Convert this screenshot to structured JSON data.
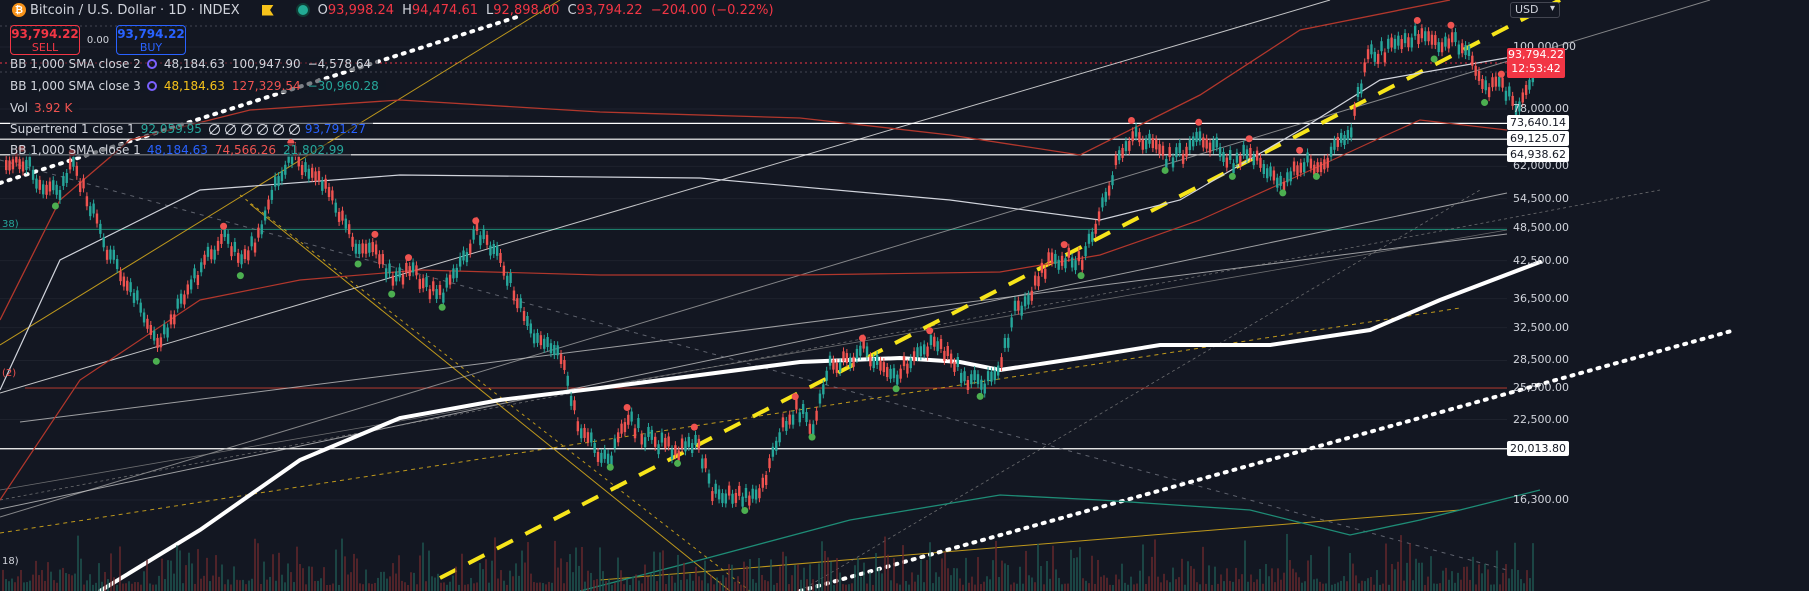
{
  "header": {
    "logo_glyph": "₿",
    "title": "Bitcoin / U.S. Dollar · 1D · INDEX",
    "ohlc": [
      {
        "k": "O",
        "v": "93,998.24"
      },
      {
        "k": "H",
        "v": "94,474.61"
      },
      {
        "k": "L",
        "v": "92,898.00"
      },
      {
        "k": "C",
        "v": "93,794.22"
      }
    ],
    "change": "−204.00 (−0.22%)"
  },
  "trade": {
    "sell_price": "93,794.22",
    "sell_label": "SELL",
    "spread": "0.00",
    "buy_price": "93,794.22",
    "buy_label": "BUY"
  },
  "indicators": [
    {
      "name": "BB 1,000 SMA close 2",
      "values": [
        {
          "t": "48,184.63",
          "c": "#d1d4dc"
        },
        {
          "t": "100,947.90",
          "c": "#d1d4dc"
        },
        {
          "t": "−4,578.64",
          "c": "#d1d4dc"
        }
      ]
    },
    {
      "name": "BB 1,000 SMA close 3",
      "values": [
        {
          "t": "48,184.63",
          "c": "#f7c31a"
        },
        {
          "t": "127,329.54",
          "c": "#ef5350"
        },
        {
          "t": "−30,960.28",
          "c": "#26a69a"
        }
      ]
    },
    {
      "name": "Vol",
      "values": [
        {
          "t": "3.92 K",
          "c": "#ef5350"
        }
      ]
    },
    {
      "name": "Supertrend 1 close 1",
      "values": [
        {
          "t": "92,059.95",
          "c": "#26a69a"
        },
        {
          "t": "93,791.27",
          "c": "#2962ff"
        }
      ]
    },
    {
      "name": "BB 1,000 SMA close 1",
      "values": [
        {
          "t": "48,184.63",
          "c": "#2962ff"
        },
        {
          "t": "74,566.26",
          "c": "#ef5350"
        },
        {
          "t": "21,802.99",
          "c": "#26a69a"
        }
      ]
    }
  ],
  "side_labels": [
    "38)",
    "(2)",
    "18)"
  ],
  "axis": {
    "currency": "USD",
    "current_price": "93,794.22",
    "countdown": "12:53:42"
  },
  "colors": {
    "background": "#131722",
    "up": "#26a69a",
    "down": "#ef5350",
    "sma": "#ffffff",
    "trend_dashed": "#f7e51a",
    "upper_band": "#b2372c",
    "lower_band": "#1e8c76"
  },
  "chart_data": {
    "type": "line",
    "y_scale": "log",
    "y_ticks": [
      16300,
      20013.8,
      22500,
      25500,
      28500,
      32500,
      36500,
      42500,
      48500,
      54500,
      62000,
      64938.62,
      69125.07,
      73640.14,
      78000,
      93794.22,
      100000
    ],
    "y_tick_labels": [
      "16,300.00",
      "22,500.00",
      "25,500.00",
      "28,500.00",
      "32,500.00",
      "36,500.00",
      "42,500.00",
      "48,500.00",
      "54,500.00",
      "62,000.00",
      "78,000.00",
      "100,000.00"
    ],
    "y_tick_values": [
      16300,
      22500,
      25500,
      28500,
      32500,
      36500,
      42500,
      48500,
      54500,
      62000,
      78000,
      100000
    ],
    "price_levels": [
      {
        "value": 73640.14,
        "label": "73,640.14"
      },
      {
        "value": 69125.07,
        "label": "69,125.07"
      },
      {
        "value": 64938.62,
        "label": "64,938.62"
      },
      {
        "value": 20013.8,
        "label": "20,013.80"
      }
    ],
    "series": [
      {
        "name": "Bitcoin / U.S. Dollar",
        "values": [
          61500,
          63500,
          58500,
          55500,
          62500,
          53000,
          44500,
          39500,
          36000,
          29800,
          34000,
          38500,
          43500,
          46500,
          42000,
          47000,
          58000,
          65000,
          61000,
          57500,
          49500,
          44000,
          45000,
          39000,
          41000,
          38000,
          37000,
          42000,
          47500,
          44500,
          39000,
          33000,
          30500,
          29200,
          22000,
          20000,
          19500,
          22500,
          21000,
          20400,
          19800,
          20800,
          17000,
          16500,
          16400,
          17300,
          21500,
          23500,
          22000,
          28000,
          28800,
          29700,
          27800,
          26700,
          29300,
          30600,
          29500,
          26700,
          25900,
          27200,
          34500,
          37400,
          42400,
          43200,
          42000,
          51000,
          62000,
          71000,
          68000,
          64000,
          65500,
          70500,
          67000,
          62500,
          66000,
          60500,
          58500,
          63000,
          62500,
          66000,
          73000,
          96000,
          98000,
          102000,
          106000,
          100000,
          104000,
          98000,
          84000,
          85500,
          78000,
          93794
        ]
      }
    ],
    "xlabel": "",
    "ylabel": ""
  }
}
